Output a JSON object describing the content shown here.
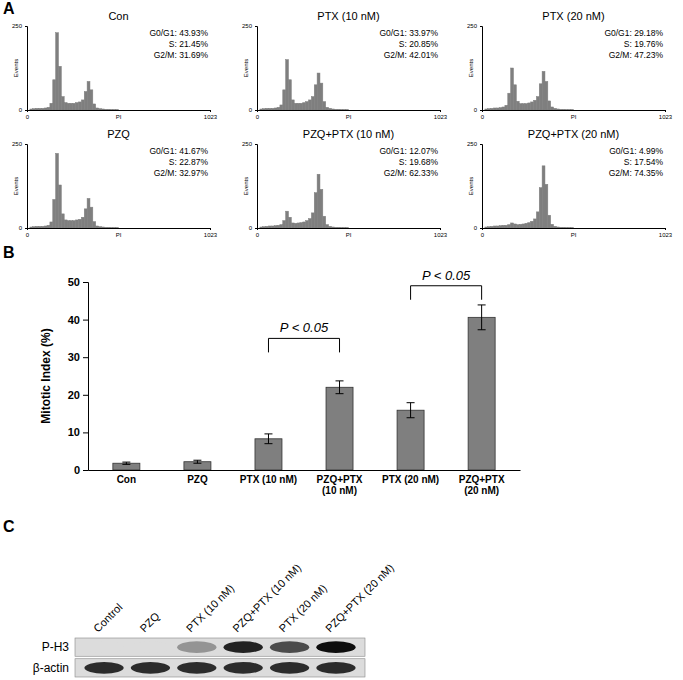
{
  "panel_labels": [
    "A",
    "B",
    "C"
  ],
  "chart_data": [
    {
      "type": "histogram",
      "title": "Con",
      "annotations": [
        "G0/G1: 43.93%",
        "S: 21.45%",
        "G2/M: 31.69%"
      ],
      "x_label": "PI",
      "y_label": "Events",
      "bins": [
        0,
        16,
        32,
        48,
        64,
        80,
        96,
        112,
        128,
        144,
        160,
        176,
        192,
        208,
        224,
        240,
        256,
        272,
        288,
        304,
        320,
        336,
        352,
        368,
        384,
        400,
        416,
        432,
        448,
        464,
        480,
        496,
        512,
        1023
      ],
      "counts": [
        0,
        3,
        4,
        5,
        5,
        5,
        6,
        8,
        20,
        90,
        230,
        130,
        40,
        22,
        20,
        20,
        20,
        22,
        24,
        30,
        55,
        85,
        60,
        18,
        6,
        4,
        3,
        2,
        2,
        1,
        1,
        1,
        0
      ],
      "xlim": [
        0,
        1023
      ],
      "xticks": [
        0,
        1023
      ],
      "ylim": [
        0,
        250
      ],
      "yticks": [
        0,
        250
      ],
      "color": "#7f7f7f"
    },
    {
      "type": "histogram",
      "title": "PTX (10 nM)",
      "annotations": [
        "G0/G1: 33.97%",
        "S: 20.85%",
        "G2/M: 42.01%"
      ],
      "x_label": "PI",
      "y_label": "Events",
      "bins": [
        0,
        16,
        32,
        48,
        64,
        80,
        96,
        112,
        128,
        144,
        160,
        176,
        192,
        208,
        224,
        240,
        256,
        272,
        288,
        304,
        320,
        336,
        352,
        368,
        384,
        400,
        416,
        432,
        448,
        464,
        480,
        496,
        512,
        1023
      ],
      "counts": [
        0,
        3,
        4,
        5,
        5,
        5,
        6,
        8,
        15,
        60,
        150,
        90,
        30,
        20,
        20,
        20,
        22,
        25,
        30,
        40,
        75,
        110,
        80,
        25,
        8,
        5,
        3,
        2,
        2,
        1,
        1,
        1,
        0
      ],
      "xlim": [
        0,
        1023
      ],
      "xticks": [
        0,
        1023
      ],
      "ylim": [
        0,
        250
      ],
      "yticks": [
        0,
        250
      ],
      "color": "#7f7f7f"
    },
    {
      "type": "histogram",
      "title": "PTX (20 nM)",
      "annotations": [
        "G0/G1: 29.18%",
        "S: 19.76%",
        "G2/M: 47.23%"
      ],
      "x_label": "PI",
      "y_label": "Events",
      "bins": [
        0,
        16,
        32,
        48,
        64,
        80,
        96,
        112,
        128,
        144,
        160,
        176,
        192,
        208,
        224,
        240,
        256,
        272,
        288,
        304,
        320,
        336,
        352,
        368,
        384,
        400,
        416,
        432,
        448,
        464,
        480,
        496,
        512,
        1023
      ],
      "counts": [
        0,
        3,
        4,
        5,
        6,
        6,
        7,
        9,
        14,
        50,
        125,
        75,
        26,
        19,
        19,
        19,
        21,
        24,
        29,
        40,
        78,
        115,
        85,
        27,
        9,
        5,
        3,
        2,
        2,
        1,
        1,
        1,
        0
      ],
      "xlim": [
        0,
        1023
      ],
      "xticks": [
        0,
        1023
      ],
      "ylim": [
        0,
        250
      ],
      "yticks": [
        0,
        250
      ],
      "color": "#7f7f7f"
    },
    {
      "type": "histogram",
      "title": "PZQ",
      "annotations": [
        "G0/G1: 41.67%",
        "S: 22.87%",
        "G2/M: 32.97%"
      ],
      "x_label": "PI",
      "y_label": "Events",
      "bins": [
        0,
        16,
        32,
        48,
        64,
        80,
        96,
        112,
        128,
        144,
        160,
        176,
        192,
        208,
        224,
        240,
        256,
        272,
        288,
        304,
        320,
        336,
        352,
        368,
        384,
        400,
        416,
        432,
        448,
        464,
        480,
        496,
        512,
        1023
      ],
      "counts": [
        0,
        3,
        4,
        5,
        5,
        5,
        6,
        8,
        18,
        85,
        222,
        128,
        42,
        24,
        22,
        22,
        22,
        24,
        26,
        32,
        57,
        88,
        62,
        19,
        6,
        4,
        3,
        2,
        2,
        1,
        1,
        1,
        0
      ],
      "xlim": [
        0,
        1023
      ],
      "xticks": [
        0,
        1023
      ],
      "ylim": [
        0,
        250
      ],
      "yticks": [
        0,
        250
      ],
      "color": "#7f7f7f"
    },
    {
      "type": "histogram",
      "title": "PZQ+PTX (10 nM)",
      "annotations": [
        "G0/G1: 12.07%",
        "S: 19.68%",
        "G2/M: 62.33%"
      ],
      "x_label": "PI",
      "y_label": "Events",
      "bins": [
        0,
        16,
        32,
        48,
        64,
        80,
        96,
        112,
        128,
        144,
        160,
        176,
        192,
        208,
        224,
        240,
        256,
        272,
        288,
        304,
        320,
        336,
        352,
        368,
        384,
        400,
        416,
        432,
        448,
        464,
        480,
        496,
        512,
        1023
      ],
      "counts": [
        0,
        3,
        4,
        5,
        6,
        6,
        7,
        8,
        10,
        22,
        50,
        32,
        15,
        14,
        15,
        16,
        18,
        22,
        28,
        45,
        105,
        160,
        115,
        35,
        10,
        5,
        3,
        2,
        2,
        1,
        1,
        1,
        0
      ],
      "xlim": [
        0,
        1023
      ],
      "xticks": [
        0,
        1023
      ],
      "ylim": [
        0,
        250
      ],
      "yticks": [
        0,
        250
      ],
      "color": "#7f7f7f"
    },
    {
      "type": "histogram",
      "title": "PZQ+PTX (20 nM)",
      "annotations": [
        "G0/G1: 4.99%",
        "S: 17.54%",
        "G2/M: 74.35%"
      ],
      "x_label": "PI",
      "y_label": "Events",
      "bins": [
        0,
        16,
        32,
        48,
        64,
        80,
        96,
        112,
        128,
        144,
        160,
        176,
        192,
        208,
        224,
        240,
        256,
        272,
        288,
        304,
        320,
        336,
        352,
        368,
        384,
        400,
        416,
        432,
        448,
        464,
        480,
        496,
        512,
        1023
      ],
      "counts": [
        0,
        3,
        4,
        5,
        6,
        6,
        7,
        8,
        8,
        10,
        15,
        12,
        10,
        11,
        12,
        14,
        16,
        20,
        27,
        48,
        120,
        185,
        130,
        38,
        11,
        5,
        3,
        2,
        2,
        1,
        1,
        1,
        0
      ],
      "xlim": [
        0,
        1023
      ],
      "xticks": [
        0,
        1023
      ],
      "ylim": [
        0,
        250
      ],
      "yticks": [
        0,
        250
      ],
      "color": "#7f7f7f"
    },
    {
      "type": "bar",
      "y_label": "Mitotic Index (%)",
      "categories": [
        "Con",
        "PZQ",
        "PTX (10 nM)",
        "PZQ+PTX (10 nM)",
        "PTX (20 nM)",
        "PZQ+PTX (20 nM)"
      ],
      "values": [
        1.8,
        2.2,
        8.3,
        22,
        15.9,
        40.6
      ],
      "errors": [
        0.3,
        0.4,
        1.3,
        1.7,
        2.0,
        3.3
      ],
      "ylim": [
        0,
        50
      ],
      "yticks": [
        0,
        10,
        20,
        30,
        40,
        50
      ],
      "color": "#7f7f7f",
      "annotations": [
        {
          "text": "P < 0.05",
          "between": [
            "PTX (10 nM)",
            "PZQ+PTX (10 nM)"
          ],
          "y": 35
        },
        {
          "text": "P < 0.05",
          "between": [
            "PTX (20 nM)",
            "PZQ+PTX (20 nM)"
          ],
          "y": 49
        }
      ]
    }
  ],
  "blot": {
    "lanes": [
      "Control",
      "PZQ",
      "PTX (10 nM)",
      "PZQ+PTX (10 nM)",
      "PTX (20 nM)",
      "PZQ+PTX (20 nM)"
    ],
    "rows": [
      {
        "label": "P-H3",
        "values": [
          0,
          0,
          0.35,
          0.9,
          0.7,
          1.0
        ]
      },
      {
        "label": "β-actin",
        "values": [
          0.85,
          0.85,
          0.85,
          0.85,
          0.85,
          0.85
        ]
      }
    ],
    "range": [
      0,
      1
    ]
  }
}
